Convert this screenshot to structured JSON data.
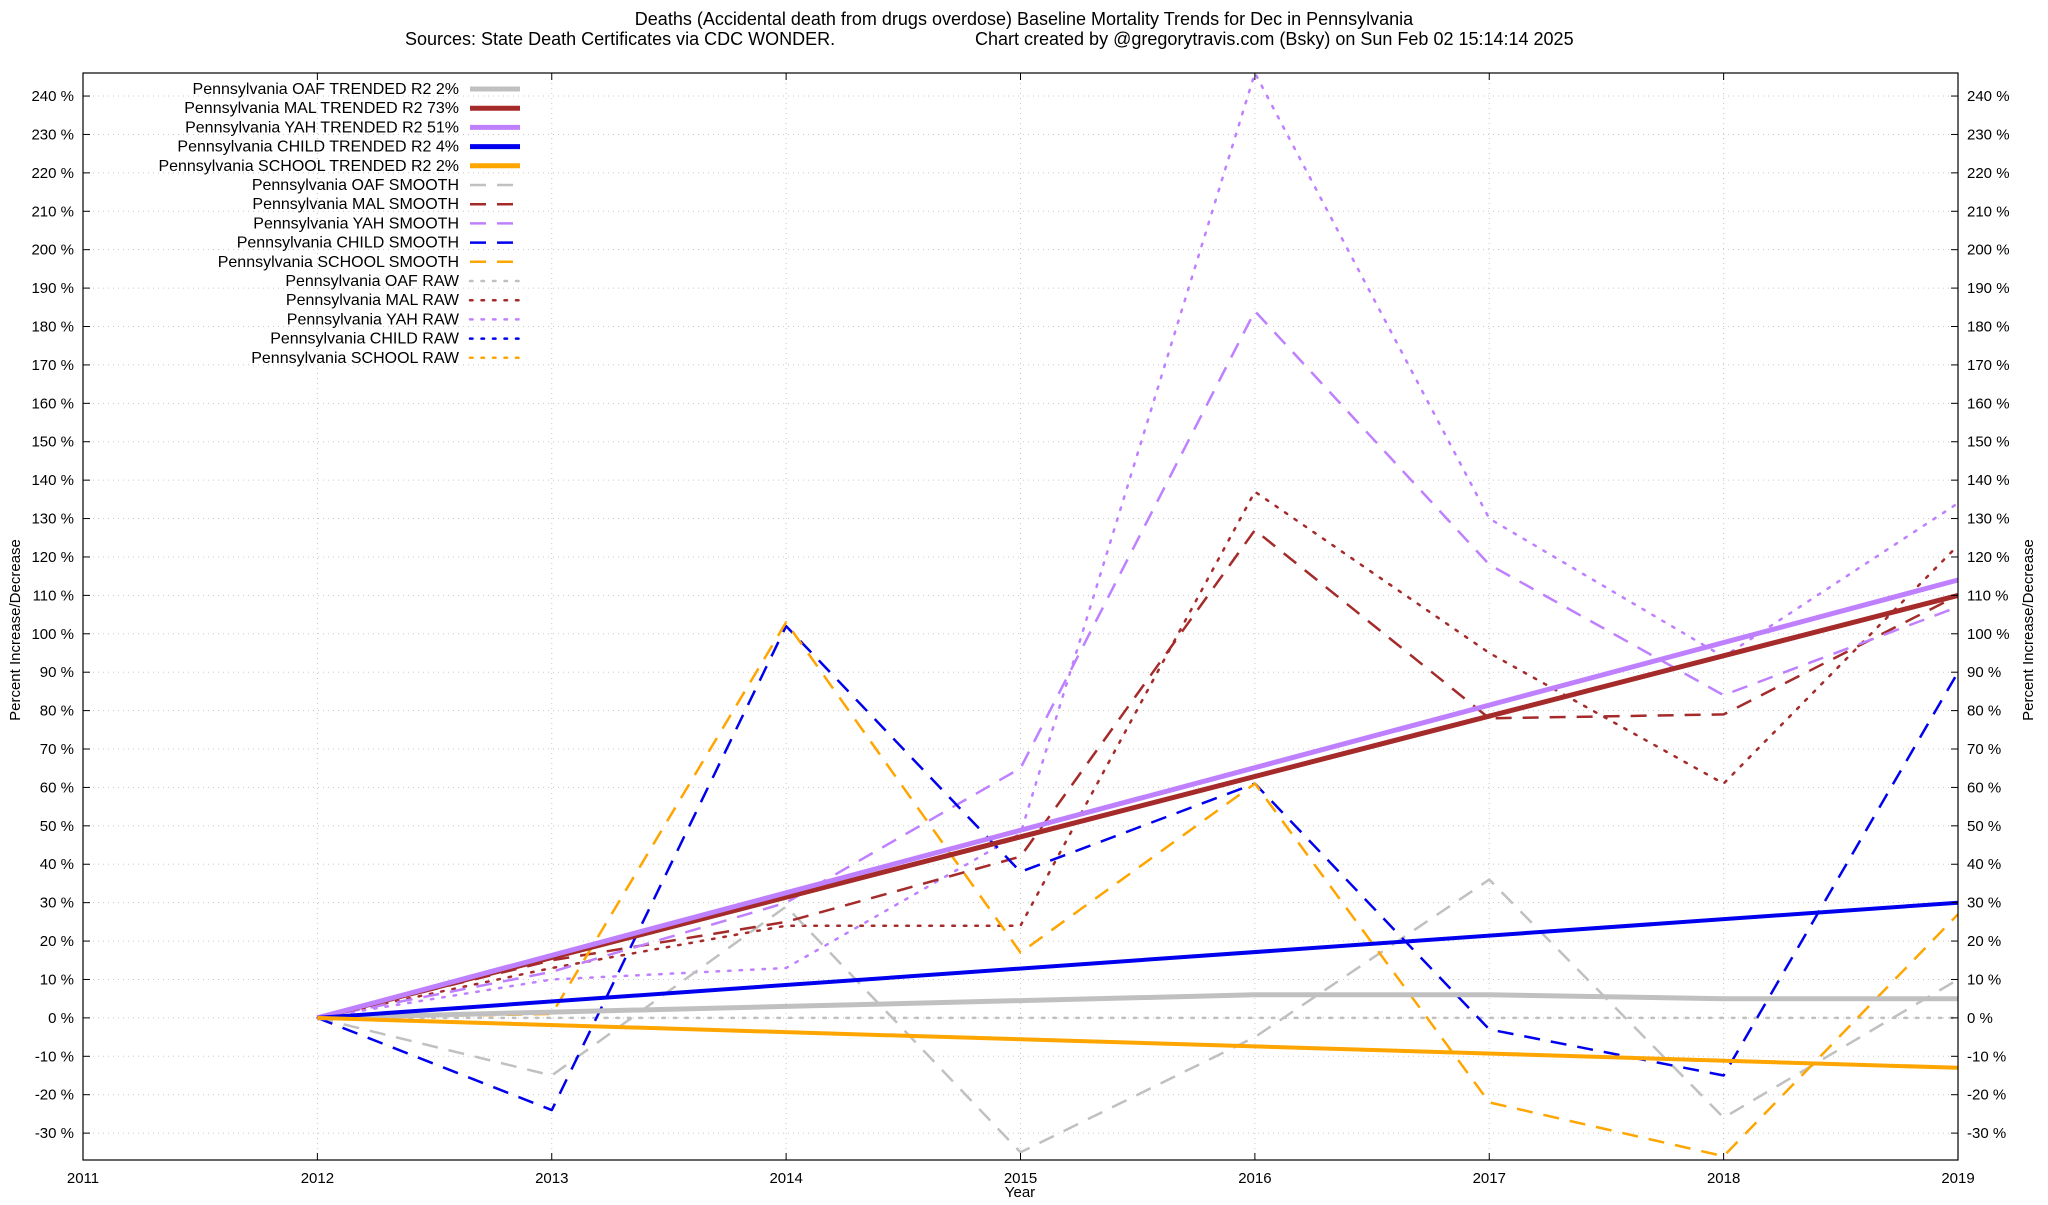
{
  "chart_data": {
    "type": "line",
    "title": "Deaths (Accidental death from drugs overdose)  Baseline Mortality Trends for Dec in Pennsylvania",
    "subtitle_left": "Sources: State Death Certificates via CDC WONDER.",
    "subtitle_right": "Chart created by @gregorytravis.com (Bsky) on Sun Feb 02 15:14:14 2025",
    "xlabel": "Year",
    "ylabel_left": "Percent Increase/Decrease",
    "ylabel_right": "Percent Increase/Decrease",
    "xlim": [
      2011,
      2019
    ],
    "ylim": [
      -37,
      246
    ],
    "x_ticks": [
      2011,
      2012,
      2013,
      2014,
      2015,
      2016,
      2017,
      2018,
      2019
    ],
    "y_ticks": [
      -30,
      -20,
      -10,
      0,
      10,
      20,
      30,
      40,
      50,
      60,
      70,
      80,
      90,
      100,
      110,
      120,
      130,
      140,
      150,
      160,
      170,
      180,
      190,
      200,
      210,
      220,
      230,
      240
    ],
    "y_tick_suffix": " %",
    "grid": true,
    "legend_position": "top-left",
    "series": [
      {
        "name": "Pennsylvania OAF TRENDED R2  2%",
        "style": "solid",
        "width": 5,
        "color": "#c0c0c0",
        "x": [
          2012,
          2013,
          2014,
          2015,
          2016,
          2017,
          2018,
          2019
        ],
        "values": [
          0,
          1.5,
          3,
          4.5,
          6,
          6,
          5,
          5
        ]
      },
      {
        "name": "Pennsylvania MAL TRENDED R2  73%",
        "style": "solid",
        "width": 5,
        "color": "#a52a2a",
        "x": [
          2012,
          2019
        ],
        "values": [
          0,
          110
        ]
      },
      {
        "name": "Pennsylvania YAH TRENDED R2  51%",
        "style": "solid",
        "width": 5,
        "color": "#bf80ff",
        "x": [
          2012,
          2019
        ],
        "values": [
          0,
          114
        ]
      },
      {
        "name": "Pennsylvania CHILD TRENDED R2  4%",
        "style": "solid",
        "width": 4,
        "color": "#0000ee",
        "x": [
          2012,
          2019
        ],
        "values": [
          0,
          30
        ]
      },
      {
        "name": "Pennsylvania SCHOOL TRENDED R2  2%",
        "style": "solid",
        "width": 4,
        "color": "#ffa500",
        "x": [
          2012,
          2019
        ],
        "values": [
          0,
          -13
        ]
      },
      {
        "name": "Pennsylvania OAF SMOOTH",
        "style": "dashed",
        "width": 2.5,
        "color": "#c0c0c0",
        "x": [
          2012,
          2013,
          2014,
          2015,
          2016,
          2017,
          2018,
          2019
        ],
        "values": [
          0,
          -15,
          29,
          -35,
          -5,
          36,
          -26,
          10
        ]
      },
      {
        "name": "Pennsylvania MAL SMOOTH",
        "style": "dashed",
        "width": 2.5,
        "color": "#a52a2a",
        "x": [
          2012,
          2013,
          2014,
          2015,
          2016,
          2017,
          2018,
          2019
        ],
        "values": [
          0,
          15,
          25,
          42,
          127,
          78,
          79,
          110
        ]
      },
      {
        "name": "Pennsylvania YAH SMOOTH",
        "style": "dashed",
        "width": 2.5,
        "color": "#bf80ff",
        "x": [
          2012,
          2013,
          2014,
          2015,
          2016,
          2017,
          2018,
          2019
        ],
        "values": [
          0,
          12,
          30,
          65,
          184,
          118,
          84,
          107
        ]
      },
      {
        "name": "Pennsylvania CHILD SMOOTH",
        "style": "dashed",
        "width": 2.5,
        "color": "#0000ee",
        "x": [
          2012,
          2013,
          2014,
          2015,
          2016,
          2017,
          2018,
          2019
        ],
        "values": [
          0,
          -24,
          102,
          38,
          61,
          -3,
          -15,
          90
        ]
      },
      {
        "name": "Pennsylvania SCHOOL SMOOTH",
        "style": "dashed",
        "width": 2.5,
        "color": "#ffa500",
        "x": [
          2012,
          2013,
          2014,
          2015,
          2016,
          2017,
          2018,
          2019
        ],
        "values": [
          0,
          1,
          103,
          17,
          61,
          -22,
          -36,
          27
        ]
      },
      {
        "name": "Pennsylvania OAF RAW",
        "style": "dotted",
        "width": 2.5,
        "color": "#c0c0c0",
        "x": [
          2012,
          2013,
          2014,
          2015,
          2016,
          2017,
          2018,
          2019
        ],
        "values": [
          0,
          0,
          0,
          0,
          0,
          0,
          0,
          0
        ]
      },
      {
        "name": "Pennsylvania MAL RAW",
        "style": "dotted",
        "width": 2.5,
        "color": "#a52a2a",
        "x": [
          2012,
          2013,
          2014,
          2015,
          2016,
          2017,
          2018,
          2019
        ],
        "values": [
          0,
          13,
          24,
          24,
          137,
          95,
          61,
          123
        ]
      },
      {
        "name": "Pennsylvania YAH RAW",
        "style": "dotted",
        "width": 2.5,
        "color": "#bf80ff",
        "x": [
          2012,
          2013,
          2014,
          2015,
          2016,
          2017,
          2018,
          2019
        ],
        "values": [
          0,
          10,
          13,
          48,
          246,
          130,
          94,
          134
        ]
      },
      {
        "name": "Pennsylvania CHILD RAW",
        "style": "dotted",
        "width": 2.5,
        "color": "#0000ee",
        "x": [],
        "values": []
      },
      {
        "name": "Pennsylvania SCHOOL RAW",
        "style": "dotted",
        "width": 2.5,
        "color": "#ffa500",
        "x": [],
        "values": []
      }
    ]
  }
}
